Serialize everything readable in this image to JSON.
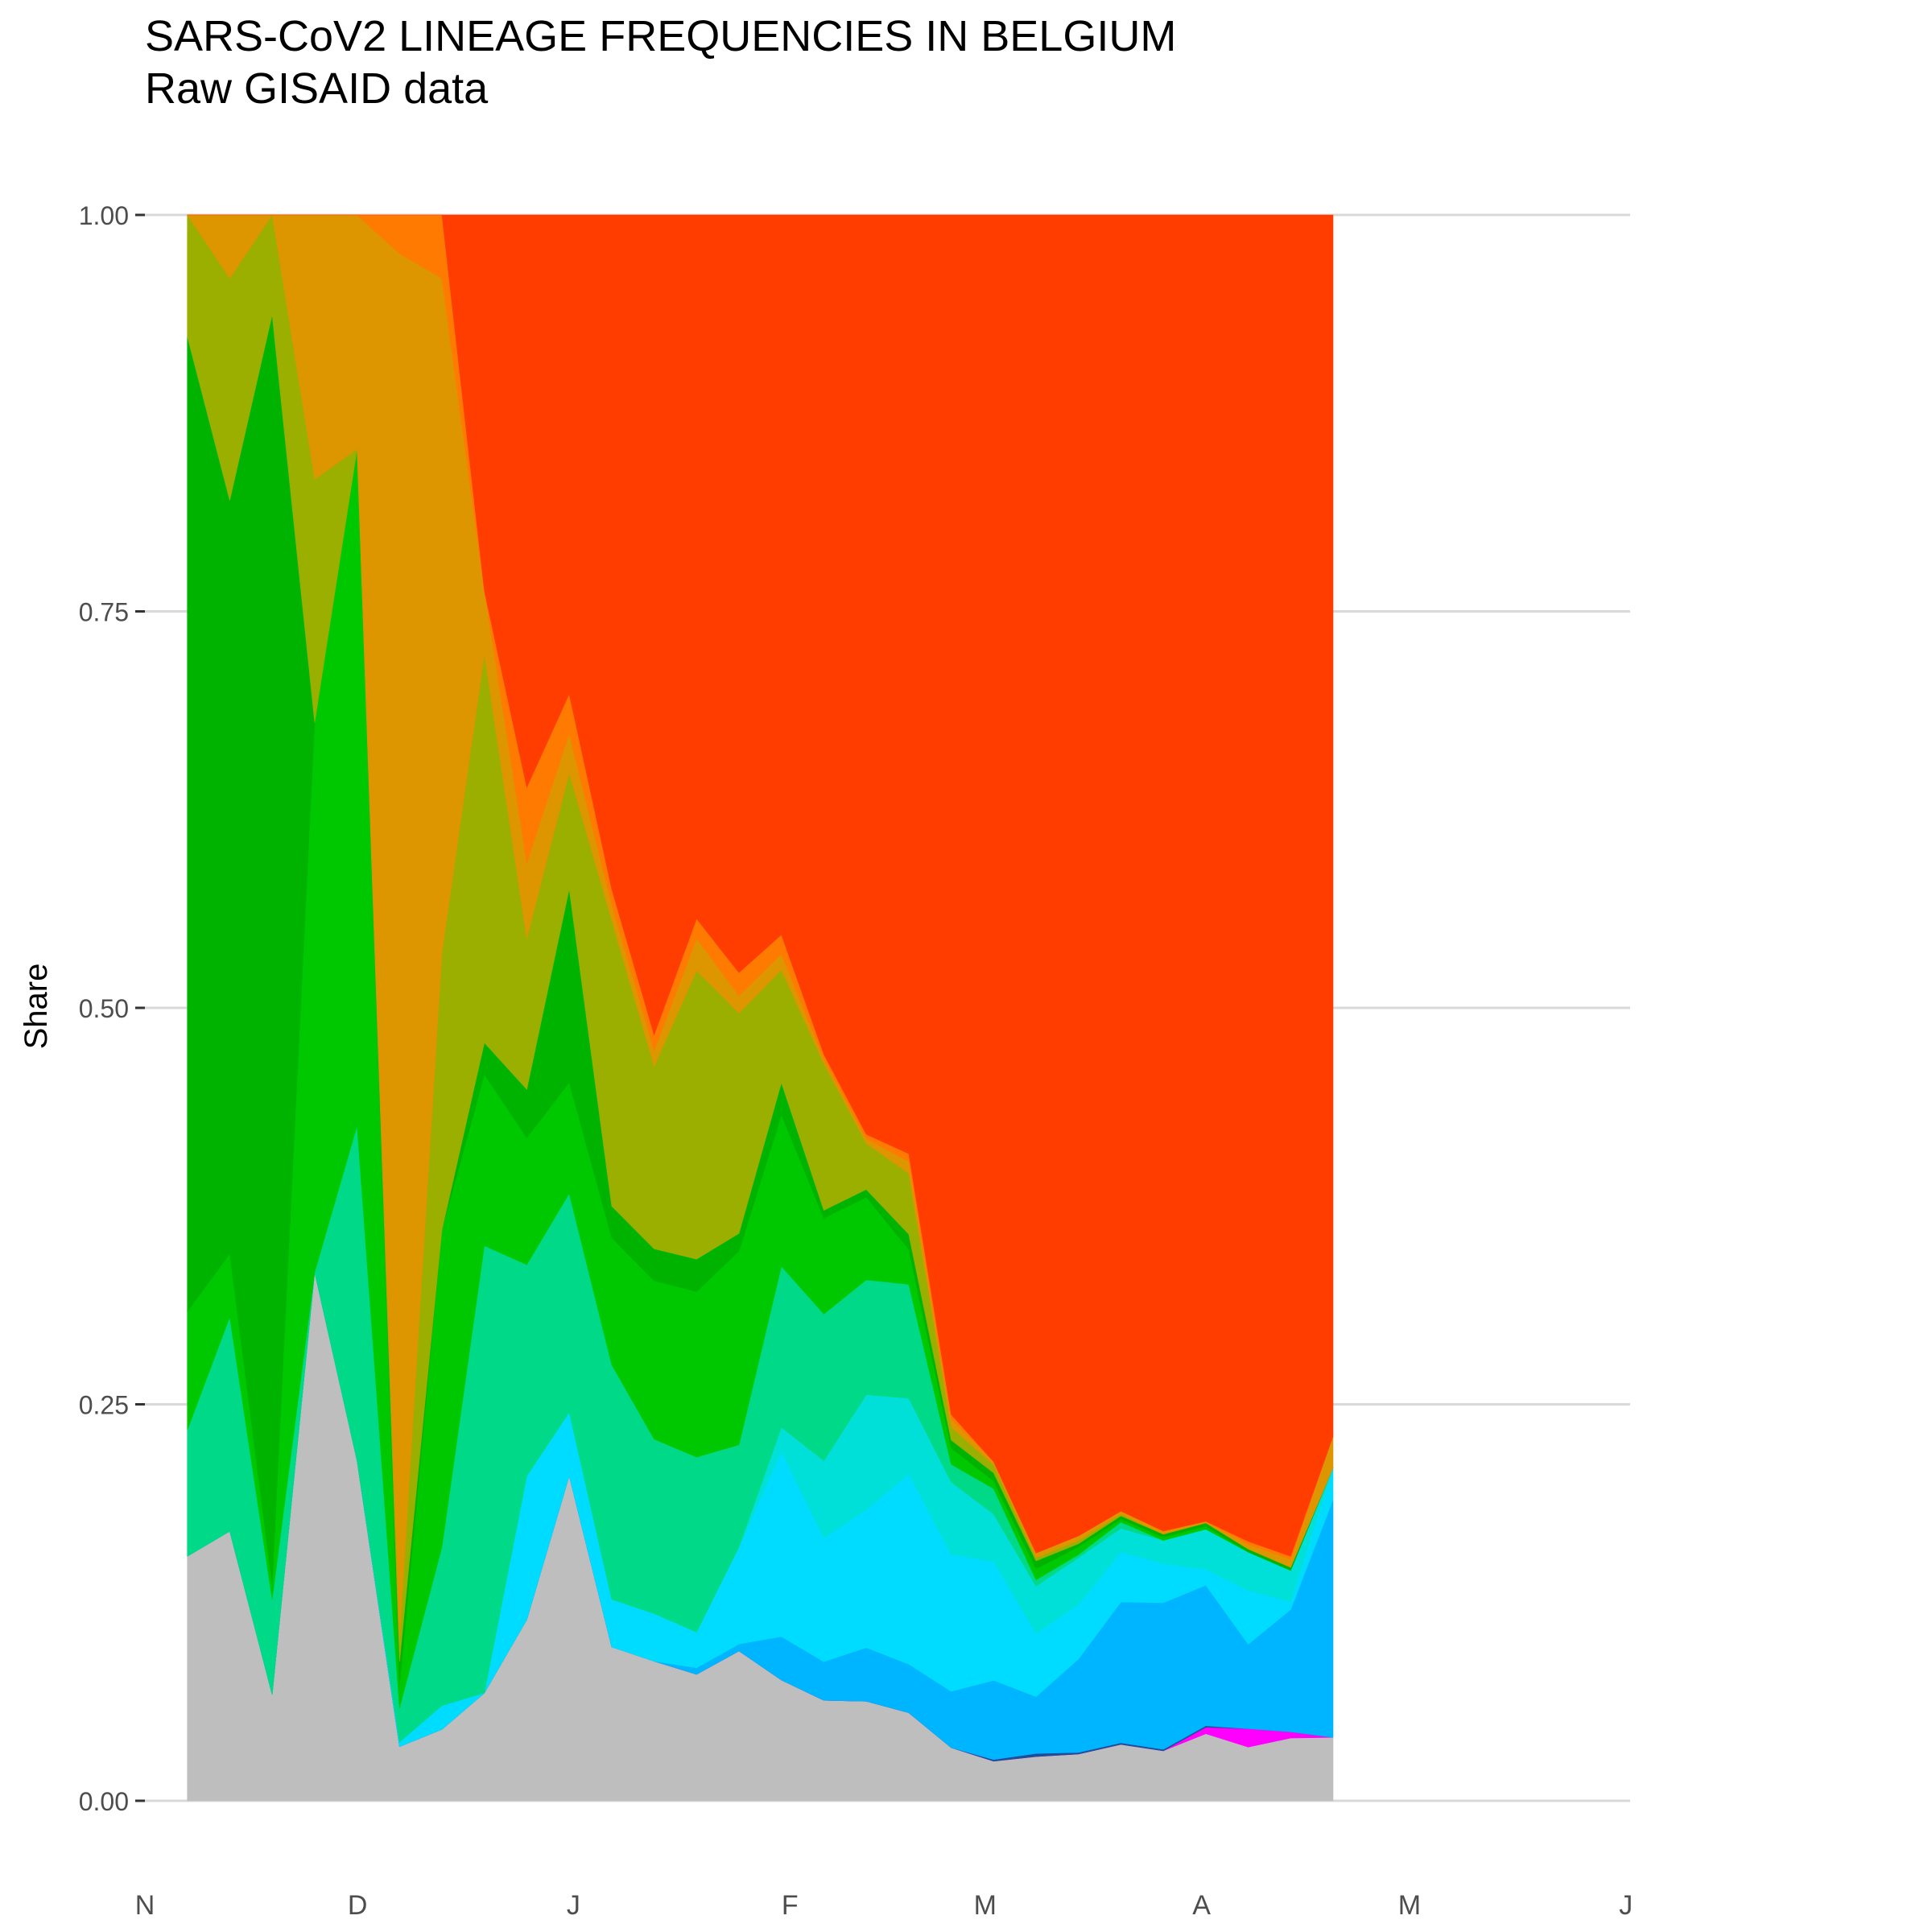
{
  "chart_data": {
    "type": "area",
    "stacked": true,
    "normalized": true,
    "title": "SARS-CoV2 LINEAGE FREQUENCIES IN BELGIUM",
    "subtitle": "Raw GISAID data",
    "xlabel": "",
    "ylabel": "Share",
    "ylim": [
      0,
      1
    ],
    "y_ticks": [
      "0.00",
      "0.25",
      "0.50",
      "0.75",
      "1.00"
    ],
    "x_ticks": [
      "N",
      "D",
      "J",
      "F",
      "M",
      "A",
      "M",
      "J"
    ],
    "grid": "horizontal",
    "legend": "none",
    "x": [
      1,
      2,
      3,
      4,
      5,
      6,
      7,
      8,
      9,
      10,
      11,
      12,
      13,
      14,
      15,
      16,
      17,
      18,
      19,
      20,
      21,
      22,
      23,
      24,
      25,
      26,
      27,
      28
    ],
    "series": [
      {
        "color": "#bebebe",
        "values": [
          0.155,
          0.17,
          0.067,
          0.25,
          0.215,
          0.035,
          0.045,
          0.068,
          0.12,
          0.205,
          0.097,
          0.088,
          0.078,
          0.085,
          0.075,
          0.065,
          0.065,
          0.058,
          0.033,
          0.025,
          0.028,
          0.03,
          0.036,
          0.032,
          0.042,
          0.035,
          0.04,
          0.04
        ]
      },
      {
        "color": "#ff00ff",
        "values": [
          0,
          0,
          0,
          0,
          0,
          0,
          0,
          0,
          0,
          0,
          0,
          0,
          0,
          0,
          0,
          0,
          0,
          0,
          0,
          0,
          0,
          0,
          0,
          0,
          0.004,
          0.012,
          0.004,
          0
        ]
      },
      {
        "color": "#1f4e99",
        "values": [
          0,
          0,
          0,
          0,
          0,
          0,
          0,
          0,
          0,
          0,
          0,
          0,
          0,
          0,
          0,
          0,
          0,
          0,
          0,
          0.001,
          0.002,
          0.001,
          0.001,
          0.001,
          0.001,
          0,
          0,
          0
        ]
      },
      {
        "color": "#00b5ff",
        "values": [
          0,
          0,
          0,
          0,
          0,
          0,
          0,
          0,
          0,
          0,
          0,
          0,
          0.004,
          0.004,
          0.027,
          0.025,
          0.035,
          0.032,
          0.035,
          0.05,
          0.036,
          0.06,
          0.09,
          0.094,
          0.088,
          0.055,
          0.078,
          0.15
        ]
      },
      {
        "color": "#00dcff",
        "values": [
          0,
          0,
          0,
          0,
          0,
          0.003,
          0.015,
          0,
          0.095,
          0.04,
          0.03,
          0.03,
          0.022,
          0.055,
          0.115,
          0.08,
          0.09,
          0.125,
          0.085,
          0.075,
          0.04,
          0.035,
          0.032,
          0.025,
          0.01,
          0.035,
          0.005,
          0.02
        ]
      },
      {
        "color": "#00e0d8",
        "values": [
          0,
          0,
          0,
          0,
          0,
          0,
          0,
          0,
          0,
          0,
          0,
          0,
          0,
          0,
          0.015,
          0.05,
          0.075,
          0.05,
          0.045,
          0.03,
          0.03,
          0.03,
          0.015,
          0.015,
          0.025,
          0.025,
          0.02,
          0
        ]
      },
      {
        "color": "#00d987",
        "values": [
          0.08,
          0.135,
          0.06,
          0,
          0.212,
          0.022,
          0.1,
          0.282,
          0.14,
          0.138,
          0.148,
          0.11,
          0.108,
          0.058,
          0.1,
          0.095,
          0.075,
          0.075,
          0.011,
          0.016,
          0.004,
          0.002,
          0.004,
          0,
          0,
          0,
          0,
          0
        ]
      },
      {
        "color": "#00c800",
        "values": [
          0.075,
          0.04,
          0.01,
          0.26,
          0.428,
          0.014,
          0.2,
          0.108,
          0.084,
          0.07,
          0.08,
          0.1,
          0.102,
          0.11,
          0.094,
          0.062,
          0.054,
          0.023,
          0.01,
          0.005,
          0.007,
          0.005,
          0.002,
          0.002,
          0.002,
          0,
          0,
          0
        ]
      },
      {
        "color": "#00b300",
        "values": [
          0.618,
          0.475,
          0.8,
          0,
          0,
          0.016,
          0,
          0.02,
          0.032,
          0.122,
          0.02,
          0.02,
          0.02,
          0.01,
          0.02,
          0.005,
          0.005,
          0.01,
          0.005,
          0.005,
          0.005,
          0.002,
          0.002,
          0.002,
          0.002,
          0.002,
          0.002,
          0
        ]
      },
      {
        "color": "#9aaf00",
        "values": [
          0.077,
          0.14,
          0.063,
          0.115,
          0,
          0.015,
          0.175,
          0.245,
          0.1,
          0.073,
          0.18,
          0.115,
          0.178,
          0.125,
          0.07,
          0.095,
          0.03,
          0.04,
          0.008,
          0.005,
          0.002,
          0.002,
          0.001,
          0,
          0,
          0,
          0,
          0
        ]
      },
      {
        "color": "#dd9500",
        "values": [
          0,
          0.04,
          0,
          0.125,
          0.148,
          0.895,
          0.425,
          0.04,
          0.05,
          0.025,
          0.01,
          0.01,
          0.02,
          0.01,
          0.01,
          0.003,
          0.003,
          0.008,
          0.005,
          0.002,
          0.003,
          0.003,
          0.002,
          0.002,
          0.001,
          0.003,
          0.005,
          0.02
        ]
      },
      {
        "color": "#ff7a00",
        "values": [
          0,
          0,
          0,
          0,
          0,
          0.025,
          0.04,
          0,
          0.05,
          0.025,
          0.01,
          0.01,
          0.012,
          0.013,
          0.012,
          0.003,
          0.003,
          0.005,
          0.003,
          0,
          0,
          0,
          0,
          0,
          0,
          0.002,
          0.002,
          0
        ]
      },
      {
        "color": "#ff3d00",
        "values": [
          0,
          0,
          0,
          0,
          0,
          0,
          0,
          0.237,
          0.379,
          0.302,
          0.425,
          0.517,
          0.434,
          0.43,
          0.447,
          0.543,
          0.6,
          0.618,
          0.745,
          0.787,
          0.848,
          0.848,
          0.828,
          0.844,
          0.818,
          0.864,
          0.856,
          0.77
        ]
      }
    ]
  }
}
